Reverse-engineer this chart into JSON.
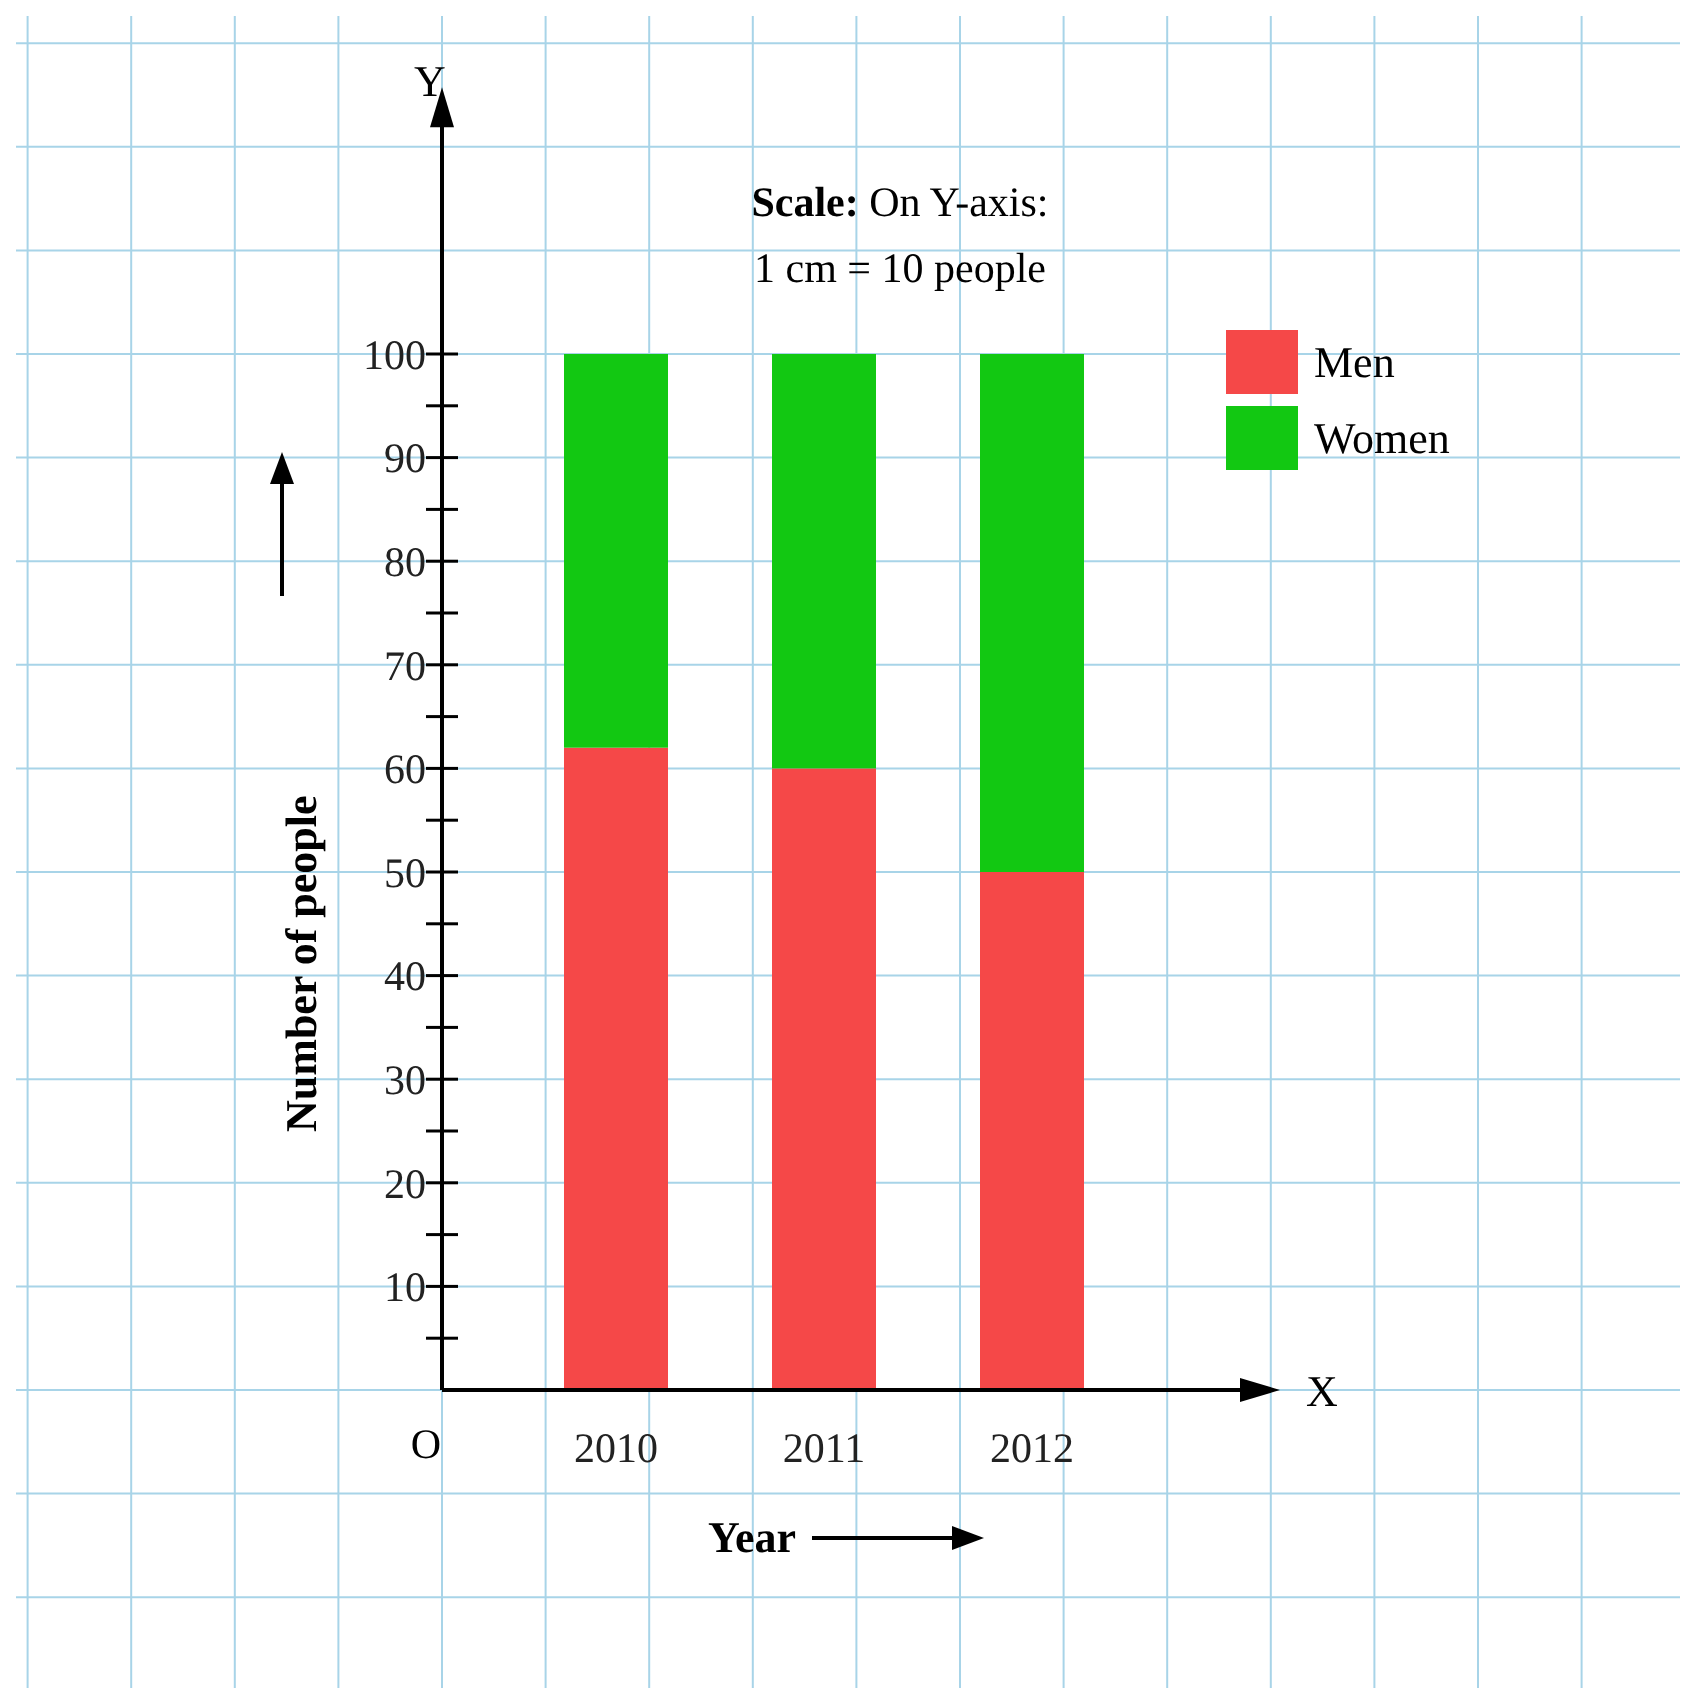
{
  "chart_data": {
    "type": "bar",
    "title": "Scale: On Y-axis:",
    "subtitle": "1 cm = 10 people",
    "xlabel": "Year",
    "ylabel": "Number of people",
    "categories": [
      "2010",
      "2011",
      "2012"
    ],
    "series": [
      {
        "name": "Men",
        "color": "#f54848",
        "values": [
          62,
          60,
          50
        ]
      },
      {
        "name": "Women",
        "color": "#12c812",
        "values": [
          38,
          40,
          50
        ]
      }
    ],
    "stacked": true,
    "ylim": [
      0,
      124
    ],
    "yticks": [
      {
        "value": 5,
        "label": null
      },
      10,
      {
        "value": 15,
        "label": null
      },
      20,
      {
        "value": 25,
        "label": null
      },
      30,
      {
        "value": 35,
        "label": null
      },
      40,
      {
        "value": 45,
        "label": null
      },
      50,
      {
        "value": 55,
        "label": null
      },
      60,
      {
        "value": 65,
        "label": null
      },
      70,
      {
        "value": 75,
        "label": null
      },
      80,
      {
        "value": 85,
        "label": null
      },
      90,
      {
        "value": 95,
        "label": null
      },
      100
    ],
    "grid": true,
    "legend": "top right",
    "annotations": [
      "Y",
      "X",
      "O"
    ]
  }
}
